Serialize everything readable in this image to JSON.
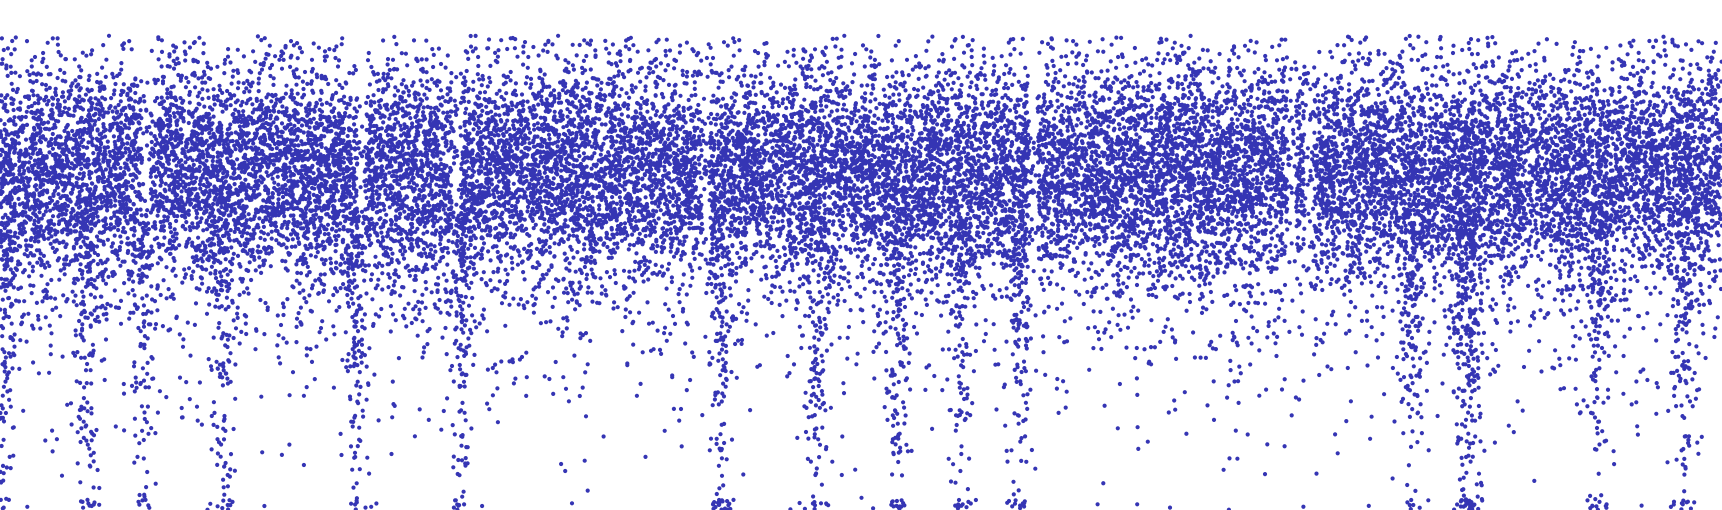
{
  "chart_data": {
    "type": "scatter",
    "title": "",
    "xlabel": "",
    "ylabel": "",
    "grid": false,
    "legend": "none",
    "axes_visible": false,
    "xlim": [
      0,
      1
    ],
    "ylim": [
      0,
      1
    ],
    "point_count_approx": 60000,
    "marker": "filled-circle",
    "series": [
      {
        "color": "#3535b4",
        "band_center_y": 0.67,
        "band_core_halfwidth": 0.14,
        "upper_extent_y": 0.93,
        "lower_tail_extent_y": 0.0,
        "dense_spikes_x": [
          0.003,
          0.05,
          0.083,
          0.13,
          0.207,
          0.267,
          0.418,
          0.475,
          0.522,
          0.558,
          0.593,
          0.82,
          0.85,
          0.856,
          0.928,
          0.978
        ],
        "gaps_x": [
          0.085,
          0.21,
          0.265,
          0.41,
          0.6,
          0.75,
          0.76
        ]
      }
    ]
  }
}
